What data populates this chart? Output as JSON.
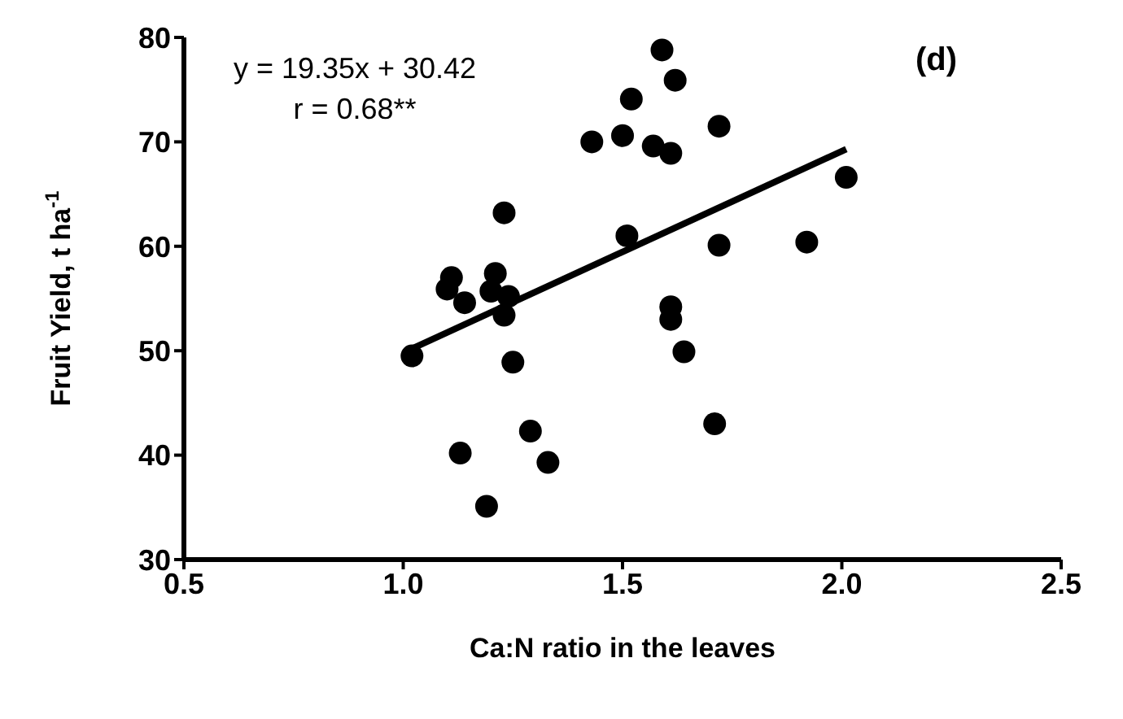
{
  "chart_data": {
    "type": "scatter",
    "xlabel": "Ca:N ratio in the leaves",
    "ylabel": "Fruit  Yield, t ha$^{-1}$",
    "annotations": [
      "y = 19.35x + 30.42",
      "r = 0.68**",
      "(d)"
    ],
    "x": [
      1.02,
      1.11,
      1.1,
      1.14,
      1.13,
      1.19,
      1.23,
      1.21,
      1.2,
      1.24,
      1.23,
      1.25,
      1.29,
      1.33,
      1.43,
      1.5,
      1.52,
      1.59,
      1.62,
      1.57,
      1.61,
      1.51,
      1.61,
      1.61,
      1.64,
      1.71,
      1.72,
      1.72,
      1.92,
      2.01
    ],
    "series": [
      {
        "color": "#000000",
        "marker": "circle",
        "values": [
          49.5,
          57.0,
          55.9,
          54.6,
          40.2,
          35.1,
          63.2,
          57.4,
          55.7,
          55.2,
          53.4,
          48.9,
          42.3,
          39.3,
          70.0,
          70.6,
          74.1,
          78.8,
          75.9,
          69.6,
          68.9,
          61.0,
          54.2,
          53.0,
          49.9,
          43.0,
          71.5,
          60.1,
          60.4,
          66.6
        ]
      },
      {
        "type": "line",
        "color": "#000000",
        "x": [
          1.02,
          2.01
        ],
        "values": [
          50.2,
          69.3
        ],
        "marker": "none",
        "line_style": "solid"
      }
    ],
    "xlim": [
      0.5,
      2.5
    ],
    "xticks": [
      0.5,
      {
        "value": 1,
        "label": "1.0"
      },
      1.5,
      {
        "value": 2,
        "label": "2.0"
      },
      2.5
    ],
    "ylim": [
      30,
      80
    ],
    "yticks": [
      30,
      40,
      50,
      60,
      70,
      80
    ]
  }
}
